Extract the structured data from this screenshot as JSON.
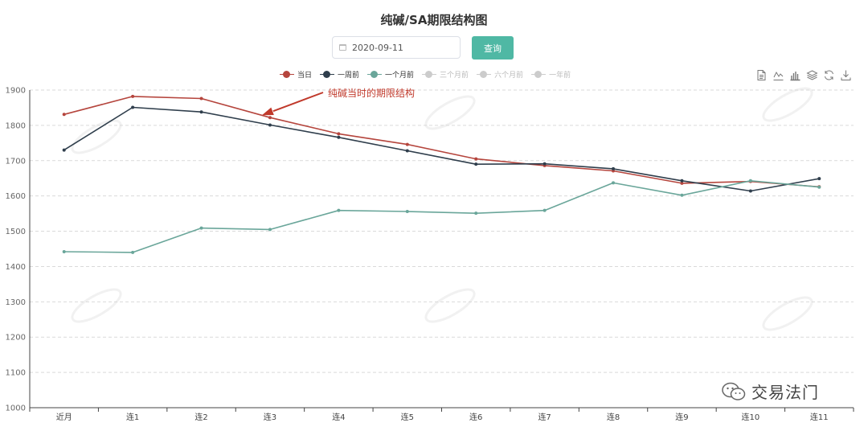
{
  "header": {
    "title": "纯碱/SA期限结构图",
    "date_value": "2020-09-11",
    "query_label": "查询"
  },
  "legend": [
    {
      "name": "当日",
      "color": "#b5453d",
      "active": true
    },
    {
      "name": "一周前",
      "color": "#2f3e4c",
      "active": true
    },
    {
      "name": "一个月前",
      "color": "#6aa69a",
      "active": true
    },
    {
      "name": "三个月前",
      "color": "#cccccc",
      "active": false
    },
    {
      "name": "六个月前",
      "color": "#cccccc",
      "active": false
    },
    {
      "name": "一年前",
      "color": "#cccccc",
      "active": false
    }
  ],
  "toolbox": [
    "data-view-icon",
    "line-chart-icon",
    "bar-chart-icon",
    "stack-icon",
    "restore-icon",
    "download-icon"
  ],
  "watermark": {
    "brand": "交易法门"
  },
  "chart_data": {
    "type": "line",
    "title": "纯碱/SA期限结构图",
    "xlabel": "",
    "ylabel": "",
    "categories": [
      "近月",
      "连1",
      "连2",
      "连3",
      "连4",
      "连5",
      "连6",
      "连7",
      "连8",
      "连9",
      "连10",
      "连11"
    ],
    "ylim": [
      1000,
      1900
    ],
    "yticks": [
      1000,
      1100,
      1200,
      1300,
      1400,
      1500,
      1600,
      1700,
      1800,
      1900
    ],
    "grid": true,
    "legend_position": "top",
    "series": [
      {
        "name": "当日",
        "color": "#b5453d",
        "values": [
          1831,
          1882,
          1876,
          1822,
          1776,
          1746,
          1705,
          1686,
          1671,
          1636,
          1641,
          1626
        ]
      },
      {
        "name": "一周前",
        "color": "#2f3e4c",
        "values": [
          1730,
          1851,
          1838,
          1801,
          1766,
          1728,
          1690,
          1691,
          1677,
          1643,
          1614,
          1649
        ]
      },
      {
        "name": "一个月前",
        "color": "#6aa69a",
        "values": [
          1442,
          1440,
          1509,
          1505,
          1559,
          1556,
          1551,
          1559,
          1637,
          1602,
          1643,
          1625
        ]
      }
    ],
    "annotation": {
      "text": "纯碱当时的期限结构",
      "color": "#c0392b",
      "target_category": "连3",
      "target_value": 1822
    }
  }
}
